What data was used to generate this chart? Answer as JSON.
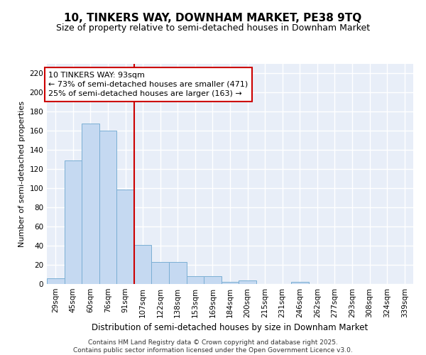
{
  "title": "10, TINKERS WAY, DOWNHAM MARKET, PE38 9TQ",
  "subtitle": "Size of property relative to semi-detached houses in Downham Market",
  "xlabel": "Distribution of semi-detached houses by size in Downham Market",
  "ylabel": "Number of semi-detached properties",
  "categories": [
    "29sqm",
    "45sqm",
    "60sqm",
    "76sqm",
    "91sqm",
    "107sqm",
    "122sqm",
    "138sqm",
    "153sqm",
    "169sqm",
    "184sqm",
    "200sqm",
    "215sqm",
    "231sqm",
    "246sqm",
    "262sqm",
    "277sqm",
    "293sqm",
    "308sqm",
    "324sqm",
    "339sqm"
  ],
  "values": [
    6,
    129,
    168,
    160,
    99,
    41,
    23,
    23,
    8,
    8,
    2,
    4,
    0,
    0,
    2,
    0,
    0,
    0,
    0,
    0,
    0
  ],
  "bar_color": "#c5d9f1",
  "bar_edge_color": "#7bafd4",
  "ylim": [
    0,
    230
  ],
  "yticks": [
    0,
    20,
    40,
    60,
    80,
    100,
    120,
    140,
    160,
    180,
    200,
    220
  ],
  "red_line_x": 4.5,
  "annotation_line1": "10 TINKERS WAY: 93sqm",
  "annotation_line2": "← 73% of semi-detached houses are smaller (471)",
  "annotation_line3": "25% of semi-detached houses are larger (163) →",
  "footnote": "Contains HM Land Registry data © Crown copyright and database right 2025.\nContains public sector information licensed under the Open Government Licence v3.0.",
  "background_color": "#e8eef8",
  "grid_color": "#ffffff",
  "title_fontsize": 11,
  "subtitle_fontsize": 9,
  "annotation_fontsize": 8,
  "xlabel_fontsize": 8.5,
  "ylabel_fontsize": 8,
  "footnote_fontsize": 6.5,
  "tick_fontsize": 7.5
}
